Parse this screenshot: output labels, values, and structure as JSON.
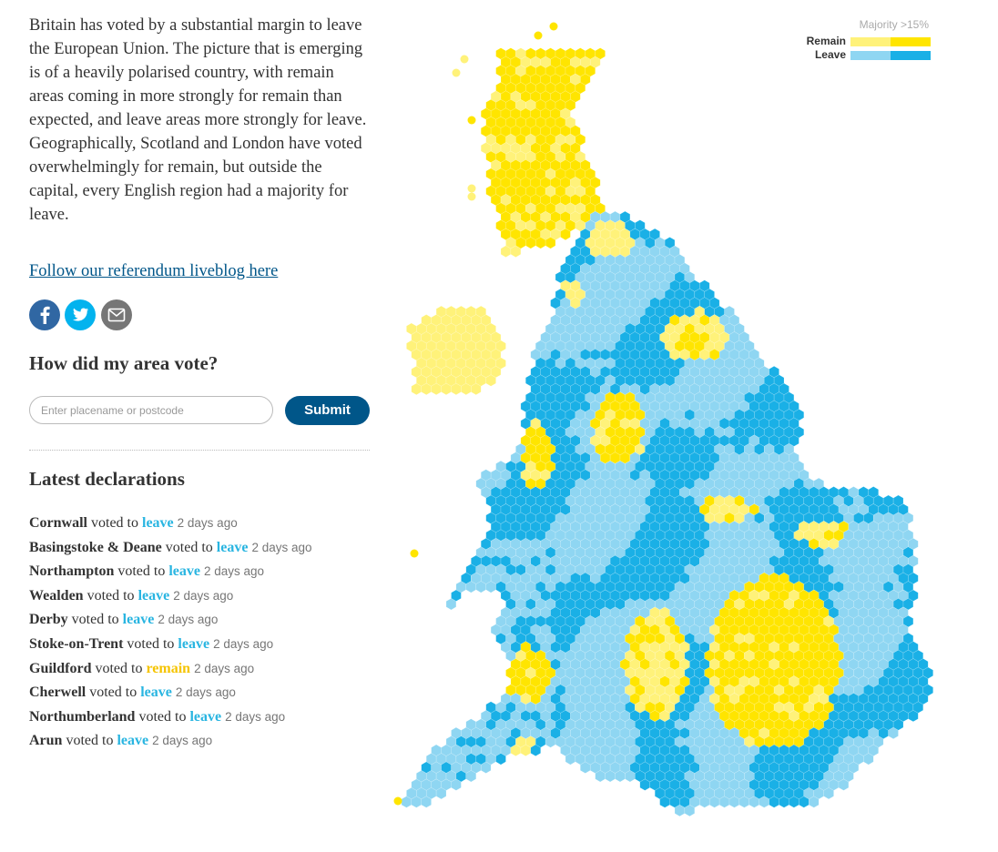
{
  "article": {
    "intro": "Britain has voted by a substantial margin to leave the European Union. The picture that is emerging is of a heavily polarised country, with remain areas coming in more strongly for remain than expected, and leave areas more strongly for leave. Geographically, Scotland and London have voted overwhelmingly for remain, but outside the capital, every English region had a majority for leave.",
    "link": "Follow our referendum liveblog here"
  },
  "search": {
    "title": "How did my area vote?",
    "placeholder": "Enter placename or postcode",
    "button": "Submit"
  },
  "declarations": {
    "title": "Latest declarations",
    "items": [
      {
        "area": "Cornwall",
        "verb": "voted to",
        "result": "leave",
        "time": "2 days ago"
      },
      {
        "area": "Basingstoke & Deane",
        "verb": "voted to",
        "result": "leave",
        "time": "2 days ago"
      },
      {
        "area": "Northampton",
        "verb": "voted to",
        "result": "leave",
        "time": "2 days ago"
      },
      {
        "area": "Wealden",
        "verb": "voted to",
        "result": "leave",
        "time": "2 days ago"
      },
      {
        "area": "Derby",
        "verb": "voted to",
        "result": "leave",
        "time": "2 days ago"
      },
      {
        "area": "Stoke-on-Trent",
        "verb": "voted to",
        "result": "leave",
        "time": "2 days ago"
      },
      {
        "area": "Guildford",
        "verb": "voted to",
        "result": "remain",
        "time": "2 days ago"
      },
      {
        "area": "Cherwell",
        "verb": "voted to",
        "result": "leave",
        "time": "2 days ago"
      },
      {
        "area": "Northumberland",
        "verb": "voted to",
        "result": "leave",
        "time": "2 days ago"
      },
      {
        "area": "Arun",
        "verb": "voted to",
        "result": "leave",
        "time": "2 days ago"
      }
    ]
  },
  "legend": {
    "title": "Majority >15%",
    "remain": "Remain",
    "leave": "Leave"
  }
}
